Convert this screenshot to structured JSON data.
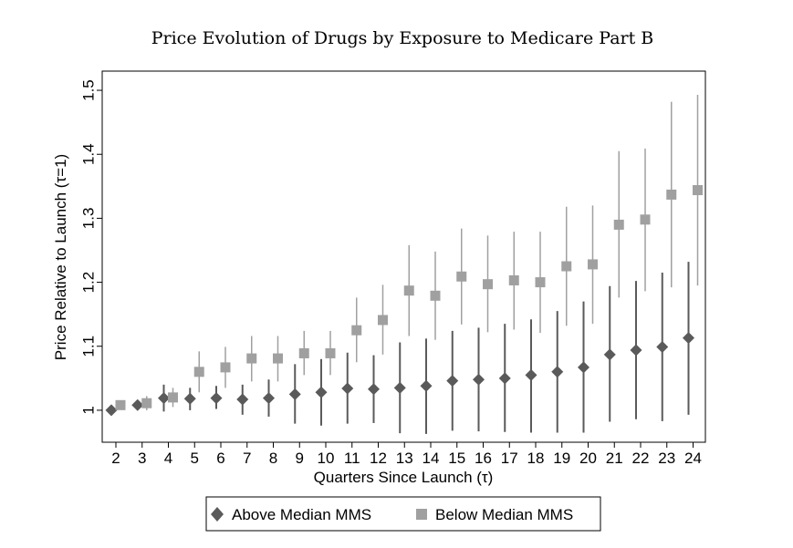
{
  "chart_data": {
    "type": "scatter",
    "title": "Price Evolution of Drugs by Exposure to Medicare Part B",
    "xlabel": "Quarters Since Launch (τ)",
    "ylabel": "Price Relative to Launch (τ=1)",
    "ylim": [
      0.95,
      1.53
    ],
    "x": [
      2,
      3,
      4,
      5,
      6,
      7,
      8,
      9,
      10,
      11,
      12,
      13,
      14,
      15,
      16,
      17,
      18,
      19,
      20,
      21,
      22,
      23,
      24
    ],
    "xticks": [
      "2",
      "3",
      "4",
      "5",
      "6",
      "7",
      "8",
      "9",
      "10",
      "11",
      "12",
      "13",
      "14",
      "15",
      "16",
      "17",
      "18",
      "19",
      "20",
      "21",
      "22",
      "23",
      "24"
    ],
    "yticks": [
      "1",
      "1.1",
      "1.2",
      "1.3",
      "1.4",
      "1.5"
    ],
    "yticks_values": [
      1,
      1.1,
      1.2,
      1.3,
      1.4,
      1.5
    ],
    "grid": false,
    "legend_position": "bottom",
    "series": [
      {
        "name": "Above Median MMS",
        "marker": "diamond",
        "color": "#5a5a5a",
        "values": [
          1.0,
          1.008,
          1.019,
          1.018,
          1.019,
          1.017,
          1.019,
          1.025,
          1.028,
          1.034,
          1.033,
          1.035,
          1.038,
          1.046,
          1.048,
          1.05,
          1.055,
          1.06,
          1.067,
          1.087,
          1.094,
          1.099,
          1.113
        ],
        "ci_low": [
          1.0,
          1.003,
          0.998,
          1.0,
          1.002,
          0.993,
          0.99,
          0.979,
          0.976,
          0.979,
          0.98,
          0.964,
          0.963,
          0.968,
          0.967,
          0.966,
          0.965,
          0.965,
          0.965,
          0.982,
          0.986,
          0.983,
          0.993
        ],
        "ci_high": [
          1.0,
          1.013,
          1.04,
          1.035,
          1.038,
          1.04,
          1.048,
          1.072,
          1.08,
          1.09,
          1.086,
          1.106,
          1.112,
          1.124,
          1.129,
          1.135,
          1.142,
          1.155,
          1.17,
          1.194,
          1.202,
          1.215,
          1.232
        ]
      },
      {
        "name": "Below Median MMS",
        "marker": "square",
        "color": "#a0a0a0",
        "values": [
          1.008,
          1.011,
          1.02,
          1.06,
          1.067,
          1.081,
          1.081,
          1.089,
          1.089,
          1.125,
          1.141,
          1.187,
          1.179,
          1.209,
          1.197,
          1.203,
          1.2,
          1.225,
          1.228,
          1.29,
          1.298,
          1.337,
          1.344
        ],
        "ci_low": [
          1.005,
          1.0,
          1.005,
          1.028,
          1.035,
          1.045,
          1.045,
          1.055,
          1.055,
          1.075,
          1.087,
          1.116,
          1.11,
          1.134,
          1.122,
          1.126,
          1.121,
          1.132,
          1.135,
          1.176,
          1.186,
          1.192,
          1.195
        ],
        "ci_high": [
          1.011,
          1.022,
          1.035,
          1.092,
          1.099,
          1.116,
          1.116,
          1.124,
          1.124,
          1.176,
          1.196,
          1.258,
          1.248,
          1.284,
          1.273,
          1.279,
          1.279,
          1.318,
          1.32,
          1.405,
          1.409,
          1.482,
          1.493
        ]
      }
    ]
  }
}
